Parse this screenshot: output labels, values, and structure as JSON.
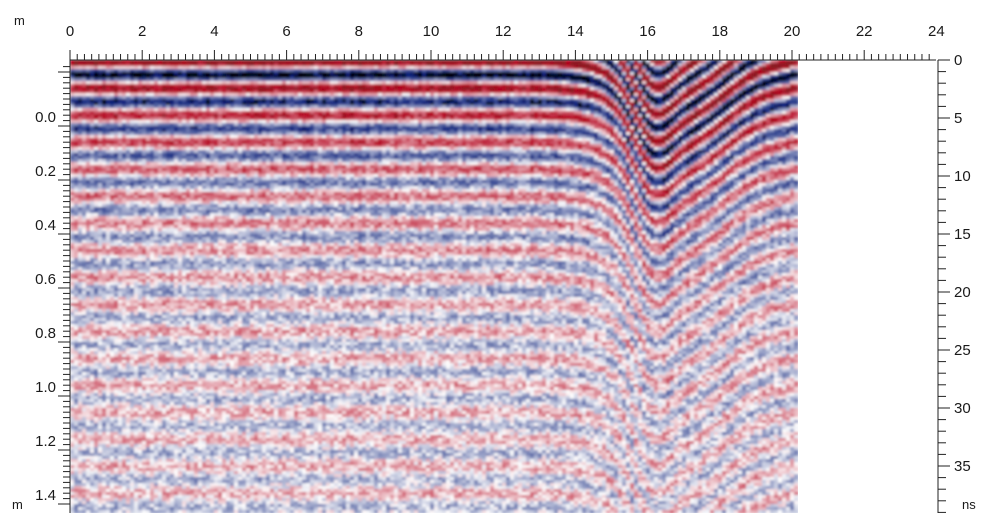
{
  "chart_data": {
    "type": "heatmap",
    "title": "",
    "colormap": {
      "negative": "#0a1f7a",
      "neutral": "#ffffff",
      "positive": "#b3001b",
      "extreme": "#000000",
      "deep_positive": "#8a1a24"
    },
    "top_axis": {
      "unit": "",
      "range": [
        0,
        24
      ],
      "tick_labels": [
        "0",
        "2",
        "4",
        "6",
        "8",
        "10",
        "12",
        "14",
        "16",
        "18",
        "20",
        "22",
        "24"
      ],
      "data_extent": [
        0,
        20
      ]
    },
    "left_axis": {
      "unit": "m",
      "range": [
        -0.2,
        1.4
      ],
      "tick_labels": [
        "0.0",
        "0.2",
        "0.4",
        "0.6",
        "0.8",
        "1.0",
        "1.2",
        "1.4"
      ]
    },
    "left_axis_corner_label": "m",
    "right_axis": {
      "unit": "ns",
      "range": [
        0,
        39
      ],
      "tick_labels": [
        "0",
        "5",
        "10",
        "15",
        "20",
        "25",
        "30",
        "35"
      ]
    },
    "corner_unit_top_left": "m",
    "grid": false,
    "legend": "none"
  }
}
